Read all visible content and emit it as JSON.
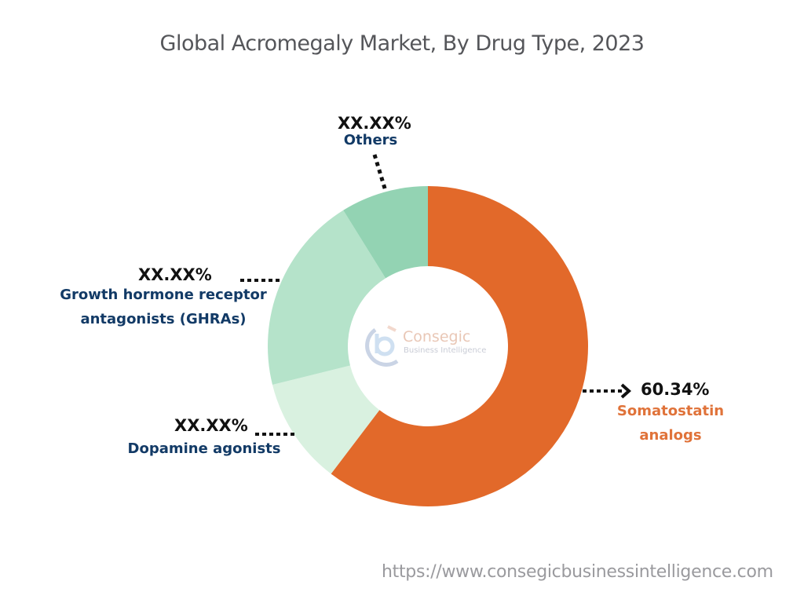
{
  "header": {
    "title": "Global Acromegaly Market, By Drug Type, 2023"
  },
  "labels": {
    "others": {
      "value": "XX.XX%",
      "name": "Others"
    },
    "ghra": {
      "value": "XX.XX%",
      "name_line1": "Growth hormone receptor",
      "name_line2": "antagonists (GHRAs)"
    },
    "dopamine": {
      "value": "XX.XX%",
      "name": "Dopamine agonists"
    },
    "somatostatin": {
      "value": "60.34%",
      "name_line1": "Somatostatin",
      "name_line2": "analogs"
    }
  },
  "logo": {
    "name": "Consegic",
    "tagline": "Business Intelligence"
  },
  "footer": {
    "url": "https://www.consegicbusinessintelligence.com"
  },
  "colors": {
    "somatostatin": "#e2692a",
    "dopamine": "#d9f1e0",
    "ghra": "#b5e3ca",
    "others": "#93d3b3",
    "label_text": "#123a66",
    "highlight_text": "#e0733a"
  },
  "chart_data": {
    "type": "pie",
    "subtype": "donut",
    "title": "Global Acromegaly Market, By Drug Type, 2023",
    "categories": [
      "Somatostatin analogs",
      "Dopamine agonists",
      "Growth hormone receptor antagonists (GHRAs)",
      "Others"
    ],
    "values": [
      60.34,
      10.8,
      20.0,
      8.86
    ],
    "value_labels": [
      "60.34%",
      "XX.XX%",
      "XX.XX%",
      "XX.XX%"
    ],
    "colors": [
      "#e2692a",
      "#d9f1e0",
      "#b5e3ca",
      "#93d3b3"
    ],
    "start_angle": "12 o'clock, clockwise",
    "legend": "none (callout labels)"
  }
}
